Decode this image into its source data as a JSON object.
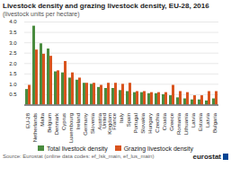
{
  "chart_data": {
    "type": "bar",
    "title": "Livestock density and grazing livestock density, EU-28, 2016",
    "subtitle": "(livestock units per hectare)",
    "categories": [
      "EU-28",
      "Netherlands",
      "Malta",
      "Belgium",
      "Denmark",
      "Cyprus",
      "Luxembourg",
      "Ireland",
      "Germany",
      "Slovenia",
      "Austria",
      "United\nKingdom",
      "France",
      "Italy",
      "Spain",
      "Portugal",
      "Slovakia",
      "Hungary",
      "Czechia",
      "Croatia",
      "Greece",
      "Romania",
      "Lithuania",
      "Latvia",
      "Estonia",
      "Latvia",
      "Bulgaria"
    ],
    "series": [
      {
        "name": "Total livestock density",
        "color": "#4a8c3f",
        "values": [
          0.75,
          3.8,
          2.95,
          2.7,
          1.6,
          1.55,
          1.3,
          1.2,
          1.05,
          1.0,
          0.85,
          0.8,
          0.8,
          0.7,
          0.65,
          0.6,
          0.6,
          0.55,
          0.55,
          0.5,
          0.45,
          0.35,
          0.3,
          0.25,
          0.25,
          0.2,
          0.3
        ]
      },
      {
        "name": "Grazing livestock density",
        "color": "#d9541e",
        "values": [
          0.95,
          2.65,
          2.45,
          2.35,
          1.65,
          2.1,
          1.55,
          1.3,
          1.05,
          1.05,
          0.95,
          1.05,
          1.05,
          1.0,
          1.05,
          0.65,
          0.65,
          0.6,
          0.6,
          0.6,
          0.95,
          0.65,
          0.6,
          0.45,
          0.45,
          0.65,
          0.65
        ]
      }
    ],
    "ylim": [
      0,
      4.0
    ],
    "yticks": [
      0.5,
      {
        "value": 1.0,
        "label": "1.0"
      },
      1.5,
      {
        "value": 2.0,
        "label": "2.0"
      },
      2.5,
      {
        "value": 3.0,
        "label": "3.0"
      },
      3.5,
      {
        "value": 4.0,
        "label": "4.0"
      }
    ],
    "grid": true,
    "legend": "bottom",
    "annotations": [
      "Source: Eurostat (online data codes: ef_lsk_main, ef_lus_main)",
      "eurostat"
    ]
  }
}
